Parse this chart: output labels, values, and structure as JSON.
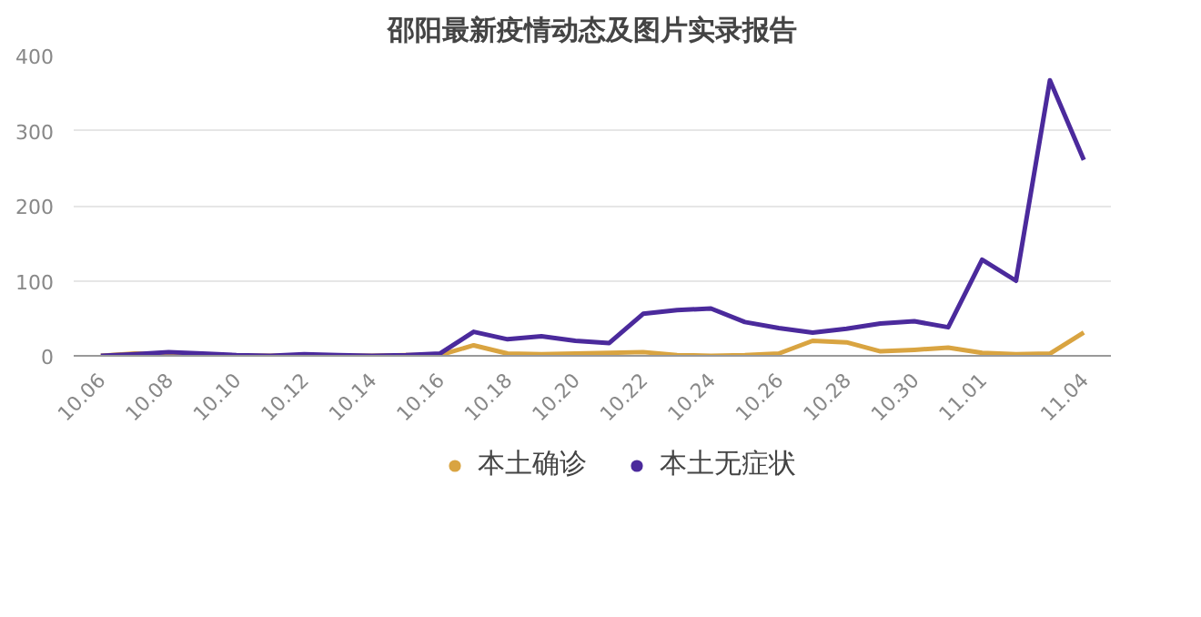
{
  "chart_data": {
    "type": "line",
    "title": "邵阳最新疫情动态及图片实录报告",
    "categories": [
      "10.06",
      null,
      "10.08",
      null,
      "10.10",
      null,
      "10.12",
      null,
      "10.14",
      null,
      "10.16",
      null,
      "10.18",
      null,
      "10.20",
      null,
      "10.22",
      null,
      "10.24",
      null,
      "10.26",
      null,
      "10.28",
      null,
      "10.30",
      null,
      "11.01",
      null,
      null,
      "11.04"
    ],
    "series": [
      {
        "name": "本土确诊",
        "color": "#d9a441",
        "values": [
          0,
          3,
          2,
          1,
          0,
          0,
          1,
          0,
          0,
          1,
          1,
          14,
          3,
          2,
          3,
          4,
          5,
          1,
          0,
          1,
          3,
          20,
          18,
          6,
          8,
          11,
          4,
          2,
          3,
          31
        ]
      },
      {
        "name": "本土无症状",
        "color": "#4b2a9c",
        "values": [
          0,
          2,
          5,
          3,
          1,
          0,
          2,
          1,
          0,
          1,
          3,
          32,
          22,
          26,
          20,
          17,
          56,
          61,
          63,
          45,
          37,
          31,
          36,
          43,
          46,
          38,
          128,
          100,
          367,
          261
        ]
      }
    ],
    "ylim": [
      0,
      400
    ],
    "yticks": [
      0,
      100,
      200,
      300,
      400
    ],
    "grid": "y",
    "legend": "bottom",
    "line_style": "solid",
    "marker": "none"
  }
}
